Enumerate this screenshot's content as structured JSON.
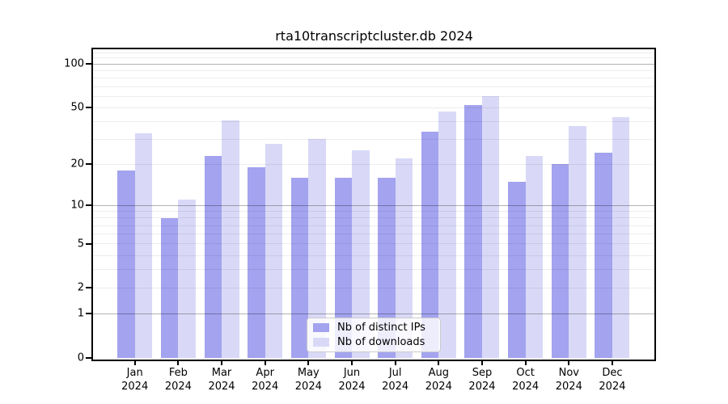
{
  "chart_data": {
    "type": "bar",
    "title": "rta10transcriptcluster.db 2024",
    "categories": [
      "Jan",
      "Feb",
      "Mar",
      "Apr",
      "May",
      "Jun",
      "Jul",
      "Aug",
      "Sep",
      "Oct",
      "Nov",
      "Dec"
    ],
    "x_tick_year": "2024",
    "series": [
      {
        "name": "Nb of distinct IPs",
        "color": "#a3a3ef",
        "values": [
          18,
          8,
          23,
          19,
          16,
          16,
          16,
          34,
          52,
          15,
          20,
          24
        ]
      },
      {
        "name": "Nb of downloads",
        "color": "#d9d9f7",
        "values": [
          33,
          11,
          41,
          28,
          30,
          25,
          22,
          47,
          60,
          23,
          37,
          43
        ]
      }
    ],
    "xlabel": "",
    "ylabel": "",
    "y_scale": "log10(1+y)",
    "y_tick_labels": [
      "0",
      "1",
      "2",
      "5",
      "10",
      "20",
      "50",
      "100"
    ],
    "y_tick_values": [
      0,
      1,
      2,
      5,
      10,
      20,
      50,
      100
    ],
    "ylim": [
      0,
      126
    ],
    "grid": {
      "on": true,
      "major_values": [
        1,
        10,
        100
      ],
      "minor_values": [
        2,
        3,
        4,
        5,
        6,
        7,
        8,
        9,
        20,
        30,
        40,
        50,
        60,
        70,
        80,
        90,
        110,
        120
      ]
    },
    "legend": {
      "position": "bottom-center",
      "entries": [
        "Nb of distinct IPs",
        "Nb of downloads"
      ]
    }
  }
}
